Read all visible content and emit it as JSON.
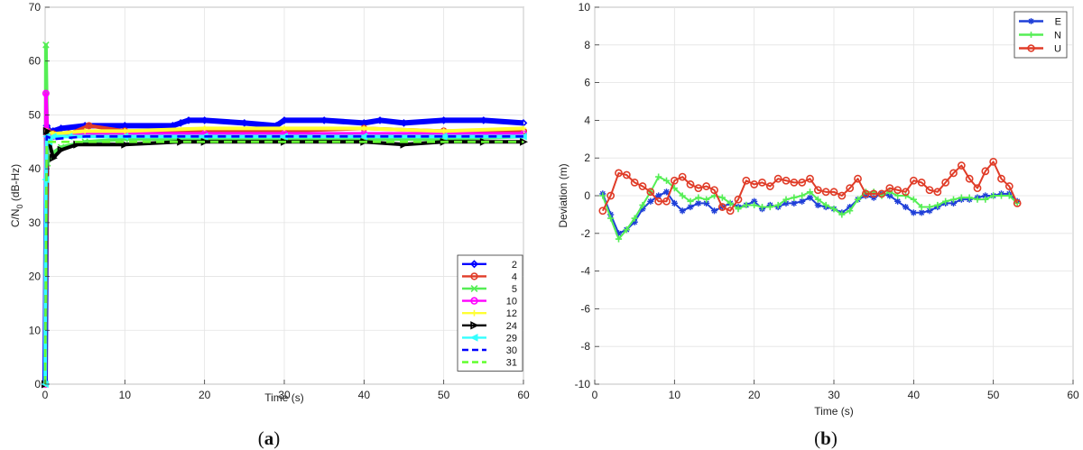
{
  "chart_data": [
    {
      "panel_label": "a",
      "type": "line",
      "xlabel": "Time (s)",
      "ylabel_main": "C/N",
      "ylabel_sub": "0",
      "ylabel_unit": " (dB-Hz)",
      "xlim": [
        0,
        60
      ],
      "ylim": [
        0,
        70
      ],
      "xticks": [
        0,
        10,
        20,
        30,
        40,
        50,
        60
      ],
      "yticks": [
        0,
        10,
        20,
        30,
        40,
        50,
        60,
        70
      ],
      "grid": true,
      "legend_position": "bottom-right",
      "series": [
        {
          "name": "2",
          "color": "#0000ff",
          "marker": "diamond",
          "x": [
            0,
            0.2,
            0.5,
            1,
            2,
            5,
            10,
            16,
            17,
            18,
            20,
            25,
            29,
            30,
            35,
            40,
            42,
            45,
            50,
            55,
            60
          ],
          "y": [
            0,
            48,
            47,
            47,
            47.5,
            48,
            48,
            48,
            48.5,
            49,
            49,
            48.5,
            48,
            49,
            49,
            48.5,
            49,
            48.5,
            49,
            49,
            48.5
          ]
        },
        {
          "name": "4",
          "color": "#e03c28",
          "marker": "circle",
          "x": [
            0,
            0.3,
            1,
            3,
            5.5,
            10,
            20,
            30,
            40,
            50,
            60
          ],
          "y": [
            0,
            47,
            46.5,
            46.5,
            48,
            47,
            47,
            47,
            47.5,
            47,
            47
          ]
        },
        {
          "name": "5",
          "color": "#55ee55",
          "marker": "x",
          "x": [
            0,
            0.1,
            0.3,
            1,
            2,
            5,
            10,
            20,
            30,
            40,
            50,
            60
          ],
          "y": [
            0,
            63,
            41,
            43,
            44,
            45,
            45.5,
            45.5,
            45.5,
            45.5,
            45.5,
            46
          ]
        },
        {
          "name": "10",
          "color": "#ff00ff",
          "marker": "circle",
          "x": [
            0,
            0.1,
            0.3,
            1,
            5,
            10,
            20,
            30,
            40,
            50,
            60
          ],
          "y": [
            0,
            54,
            46,
            46,
            46.5,
            46.5,
            46.5,
            46.5,
            46.5,
            46.5,
            46.5
          ]
        },
        {
          "name": "12",
          "color": "#ffff33",
          "marker": "plus",
          "x": [
            0,
            0.2,
            1,
            5,
            10,
            20,
            30,
            40,
            50,
            60
          ],
          "y": [
            0,
            47,
            46.5,
            47,
            47,
            47.5,
            47.5,
            47.5,
            47,
            47.5
          ]
        },
        {
          "name": "24",
          "color": "#000000",
          "marker": "triangle-right",
          "x": [
            0,
            0.2,
            1,
            2,
            4,
            10,
            17,
            20,
            30,
            40,
            45,
            50,
            55,
            60
          ],
          "y": [
            0,
            47,
            42,
            43.5,
            44.5,
            44.5,
            45,
            45,
            45,
            45,
            44.5,
            45,
            45,
            45
          ]
        },
        {
          "name": "29",
          "color": "#33ffff",
          "marker": "triangle-left",
          "x": [
            0,
            0.1,
            0.2,
            0.5,
            1,
            3,
            10,
            20,
            30,
            40,
            50,
            60
          ],
          "y": [
            0,
            38,
            46,
            45,
            46,
            46,
            46,
            46,
            46,
            46,
            46,
            46
          ]
        },
        {
          "name": "30",
          "color": "#0000ff",
          "marker": "dash",
          "x": [
            0,
            0.2,
            1,
            5,
            10,
            20,
            30,
            40,
            50,
            60
          ],
          "y": [
            0,
            46,
            45.5,
            46,
            46,
            46,
            46,
            46,
            46,
            46
          ]
        },
        {
          "name": "31",
          "color": "#66ff33",
          "marker": "dash",
          "x": [
            0,
            0.2,
            1,
            5,
            10,
            20,
            30,
            40,
            50,
            60
          ],
          "y": [
            0,
            45,
            45,
            45,
            45,
            45,
            45,
            45,
            45,
            45
          ]
        }
      ]
    },
    {
      "panel_label": "b",
      "type": "line",
      "xlabel": "Time (s)",
      "ylabel": "Deviation (m)",
      "xlim": [
        0,
        60
      ],
      "ylim": [
        -10,
        10
      ],
      "xticks": [
        0,
        10,
        20,
        30,
        40,
        50,
        60
      ],
      "yticks": [
        -10,
        -8,
        -6,
        -4,
        -2,
        0,
        2,
        4,
        6,
        8,
        10
      ],
      "grid": true,
      "legend_position": "top-right",
      "series": [
        {
          "name": "E",
          "color": "#1f3fd8",
          "marker": "asterisk",
          "x": [
            1,
            2,
            3,
            4,
            5,
            6,
            7,
            8,
            9,
            10,
            11,
            12,
            13,
            14,
            15,
            16,
            17,
            18,
            19,
            20,
            21,
            22,
            23,
            24,
            25,
            26,
            27,
            28,
            29,
            30,
            31,
            32,
            33,
            34,
            35,
            36,
            37,
            38,
            39,
            40,
            41,
            42,
            43,
            44,
            45,
            46,
            47,
            48,
            49,
            50,
            51,
            52,
            53
          ],
          "y": [
            0.1,
            -1.0,
            -2.0,
            -1.8,
            -1.4,
            -0.7,
            -0.3,
            0.0,
            0.2,
            -0.4,
            -0.8,
            -0.6,
            -0.4,
            -0.4,
            -0.8,
            -0.6,
            -0.4,
            -0.6,
            -0.5,
            -0.3,
            -0.7,
            -0.5,
            -0.6,
            -0.4,
            -0.4,
            -0.3,
            -0.1,
            -0.5,
            -0.6,
            -0.7,
            -0.9,
            -0.6,
            -0.2,
            0.0,
            -0.1,
            0.1,
            0.0,
            -0.3,
            -0.6,
            -0.9,
            -0.9,
            -0.8,
            -0.6,
            -0.4,
            -0.4,
            -0.2,
            -0.2,
            -0.1,
            0.0,
            0.0,
            0.1,
            0.1,
            -0.3
          ]
        },
        {
          "name": "N",
          "color": "#55ee55",
          "marker": "plus",
          "x": [
            1,
            2,
            3,
            4,
            5,
            6,
            7,
            8,
            9,
            10,
            11,
            12,
            13,
            14,
            15,
            16,
            17,
            18,
            19,
            20,
            21,
            22,
            23,
            24,
            25,
            26,
            27,
            28,
            29,
            30,
            31,
            32,
            33,
            34,
            35,
            36,
            37,
            38,
            39,
            40,
            41,
            42,
            43,
            44,
            45,
            46,
            47,
            48,
            49,
            50,
            51,
            52,
            53
          ],
          "y": [
            0.0,
            -1.2,
            -2.3,
            -1.8,
            -1.2,
            -0.5,
            0.2,
            1.0,
            0.8,
            0.4,
            0.0,
            -0.3,
            -0.1,
            -0.2,
            0.0,
            -0.1,
            -0.4,
            -0.7,
            -0.5,
            -0.5,
            -0.6,
            -0.6,
            -0.5,
            -0.2,
            -0.1,
            0.0,
            0.2,
            -0.2,
            -0.5,
            -0.7,
            -1.0,
            -0.8,
            -0.2,
            0.2,
            0.2,
            0.0,
            0.2,
            0.0,
            0.0,
            -0.2,
            -0.6,
            -0.6,
            -0.5,
            -0.3,
            -0.2,
            -0.1,
            -0.1,
            -0.2,
            -0.2,
            0.0,
            0.0,
            0.0,
            -0.4
          ]
        },
        {
          "name": "U",
          "color": "#e03c28",
          "marker": "circle",
          "x": [
            1,
            2,
            3,
            4,
            5,
            6,
            7,
            8,
            9,
            10,
            11,
            12,
            13,
            14,
            15,
            16,
            17,
            18,
            19,
            20,
            21,
            22,
            23,
            24,
            25,
            26,
            27,
            28,
            29,
            30,
            31,
            32,
            33,
            34,
            35,
            36,
            37,
            38,
            39,
            40,
            41,
            42,
            43,
            44,
            45,
            46,
            47,
            48,
            49,
            50,
            51,
            52,
            53
          ],
          "y": [
            -0.8,
            0.0,
            1.2,
            1.1,
            0.7,
            0.5,
            0.2,
            -0.3,
            -0.3,
            0.8,
            1.0,
            0.6,
            0.4,
            0.5,
            0.3,
            -0.6,
            -0.8,
            -0.2,
            0.8,
            0.6,
            0.7,
            0.5,
            0.9,
            0.8,
            0.7,
            0.7,
            0.9,
            0.3,
            0.2,
            0.2,
            0.0,
            0.4,
            0.9,
            0.1,
            0.1,
            0.1,
            0.4,
            0.3,
            0.2,
            0.8,
            0.7,
            0.3,
            0.2,
            0.7,
            1.2,
            1.6,
            0.9,
            0.4,
            1.3,
            1.8,
            0.9,
            0.5,
            -0.4
          ]
        }
      ]
    }
  ]
}
